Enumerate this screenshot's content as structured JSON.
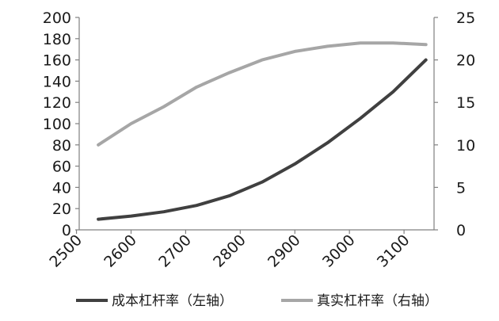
{
  "chart_data": {
    "type": "line",
    "x": [
      2540,
      2600,
      2660,
      2720,
      2780,
      2840,
      2900,
      2960,
      3020,
      3080,
      3140
    ],
    "x_ticks": [
      "2500",
      "2600",
      "2700",
      "2800",
      "2900",
      "3000",
      "3100"
    ],
    "xlim": [
      2505,
      3155
    ],
    "y_left": {
      "lim": [
        0,
        200
      ],
      "ticks": [
        "0",
        "20",
        "40",
        "60",
        "80",
        "100",
        "120",
        "140",
        "160",
        "180",
        "200"
      ]
    },
    "y_right": {
      "lim": [
        0,
        25
      ],
      "ticks": [
        "0",
        "5",
        "10",
        "15",
        "20",
        "25"
      ]
    },
    "series": [
      {
        "name": "成本杠杆率（左轴）",
        "axis": "left",
        "color": "#404040",
        "values": [
          10,
          13,
          17,
          23,
          32,
          45,
          62,
          82,
          105,
          130,
          160
        ]
      },
      {
        "name": "真实杠杆率（右轴）",
        "axis": "right",
        "color": "#a6a6a6",
        "values": [
          10,
          12.5,
          14.5,
          16.8,
          18.5,
          20,
          21,
          21.6,
          22,
          22,
          21.8
        ]
      }
    ],
    "grid": false,
    "legend_position": "bottom"
  }
}
